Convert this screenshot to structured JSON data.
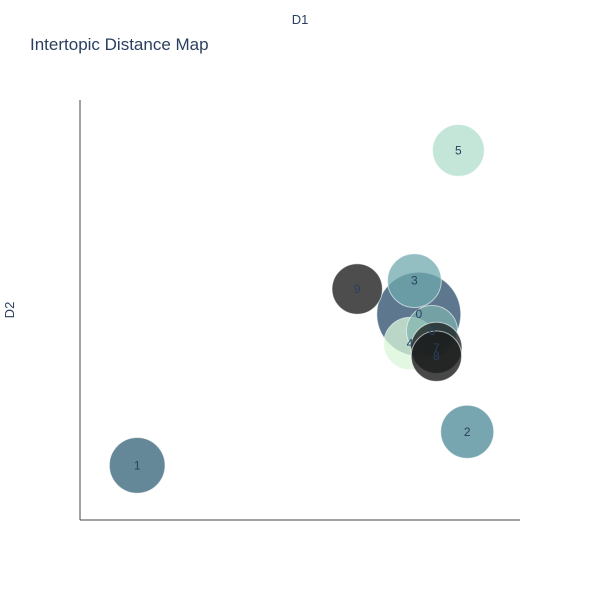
{
  "chart_data": {
    "type": "scatter",
    "title": "Intertopic Distance Map",
    "xlabel": "D1",
    "ylabel": "D2",
    "xlim": [
      0,
      100
    ],
    "ylim": [
      0,
      100
    ],
    "grid": false,
    "colors": {
      "axis": "#444444",
      "text": "#2a3f5f"
    },
    "points": [
      {
        "label": "0",
        "x": 77,
        "y": 49,
        "size": 100,
        "color": "#3f5f7a",
        "opacity": 0.85
      },
      {
        "label": "1",
        "x": 13,
        "y": 13,
        "size": 44,
        "color": "#3e6a7e",
        "opacity": 0.8
      },
      {
        "label": "2",
        "x": 88,
        "y": 21,
        "size": 40,
        "color": "#4a8796",
        "opacity": 0.75
      },
      {
        "label": "3",
        "x": 76,
        "y": 57,
        "size": 41,
        "color": "#6fa8ad",
        "opacity": 0.75
      },
      {
        "label": "4",
        "x": 75,
        "y": 42,
        "size": 39,
        "color": "#d8f5d8",
        "opacity": 0.75
      },
      {
        "label": "5",
        "x": 86,
        "y": 88,
        "size": 38,
        "color": "#a9dcc8",
        "opacity": 0.7
      },
      {
        "label": "6",
        "x": 80,
        "y": 45,
        "size": 37,
        "color": "#7fb3ae",
        "opacity": 0.7
      },
      {
        "label": "7",
        "x": 81,
        "y": 41,
        "size": 37,
        "color": "#1e2424",
        "opacity": 0.8
      },
      {
        "label": "8",
        "x": 81,
        "y": 39,
        "size": 36,
        "color": "#1a1a1a",
        "opacity": 0.8
      },
      {
        "label": "9",
        "x": 63,
        "y": 55,
        "size": 36,
        "color": "#2e2e2e",
        "opacity": 0.85
      }
    ]
  }
}
